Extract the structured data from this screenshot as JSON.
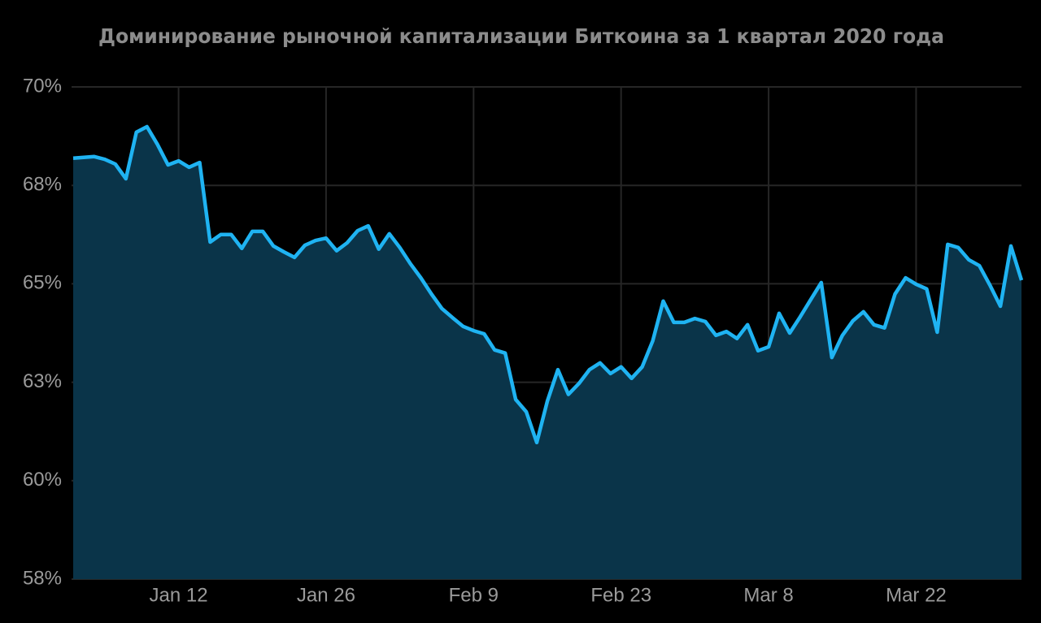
{
  "chart_data": {
    "type": "area",
    "title": "Доминирование рыночной капитализации Биткоина за 1 квартал 2020 года",
    "x": [
      "Jan 2",
      "Jan 3",
      "Jan 4",
      "Jan 5",
      "Jan 6",
      "Jan 7",
      "Jan 8",
      "Jan 9",
      "Jan 10",
      "Jan 11",
      "Jan 12",
      "Jan 13",
      "Jan 14",
      "Jan 15",
      "Jan 16",
      "Jan 17",
      "Jan 18",
      "Jan 19",
      "Jan 20",
      "Jan 21",
      "Jan 22",
      "Jan 23",
      "Jan 24",
      "Jan 25",
      "Jan 26",
      "Jan 27",
      "Jan 28",
      "Jan 29",
      "Jan 30",
      "Jan 31",
      "Feb 1",
      "Feb 2",
      "Feb 3",
      "Feb 4",
      "Feb 5",
      "Feb 6",
      "Feb 7",
      "Feb 8",
      "Feb 9",
      "Feb 10",
      "Feb 11",
      "Feb 12",
      "Feb 13",
      "Feb 14",
      "Feb 15",
      "Feb 16",
      "Feb 17",
      "Feb 18",
      "Feb 19",
      "Feb 20",
      "Feb 21",
      "Feb 22",
      "Feb 23",
      "Feb 24",
      "Feb 25",
      "Feb 26",
      "Feb 27",
      "Feb 28",
      "Feb 29",
      "Mar 1",
      "Mar 2",
      "Mar 3",
      "Mar 4",
      "Mar 5",
      "Mar 6",
      "Mar 7",
      "Mar 8",
      "Mar 9",
      "Mar 10",
      "Mar 11",
      "Mar 12",
      "Mar 13",
      "Mar 14",
      "Mar 15",
      "Mar 16",
      "Mar 17",
      "Mar 18",
      "Mar 19",
      "Mar 20",
      "Mar 21",
      "Mar 22",
      "Mar 23",
      "Mar 24",
      "Mar 25",
      "Mar 26",
      "Mar 27",
      "Mar 28",
      "Mar 29",
      "Mar 30",
      "Mar 31",
      "Apr 1"
    ],
    "values": [
      68.19,
      68.21,
      68.23,
      68.16,
      68.04,
      67.67,
      68.85,
      68.99,
      68.54,
      68.02,
      68.12,
      67.96,
      68.08,
      66.06,
      66.25,
      66.25,
      65.9,
      66.33,
      66.33,
      65.96,
      65.81,
      65.67,
      65.98,
      66.1,
      66.16,
      65.84,
      66.04,
      66.35,
      66.47,
      65.88,
      66.27,
      65.92,
      65.51,
      65.15,
      64.74,
      64.37,
      64.14,
      63.92,
      63.81,
      63.73,
      63.32,
      63.24,
      62.06,
      61.75,
      60.97,
      62.02,
      62.82,
      62.19,
      62.47,
      62.82,
      62.99,
      62.72,
      62.89,
      62.6,
      62.89,
      63.55,
      64.56,
      64.02,
      64.02,
      64.12,
      64.04,
      63.69,
      63.79,
      63.61,
      63.96,
      63.3,
      63.4,
      64.25,
      63.75,
      64.16,
      64.6,
      65.03,
      63.13,
      63.69,
      64.06,
      64.29,
      63.96,
      63.88,
      64.74,
      65.15,
      64.99,
      64.87,
      63.77,
      66.0,
      65.92,
      65.61,
      65.46,
      64.97,
      64.43,
      65.96,
      65.09
    ],
    "color": "#1fb3f2",
    "fill_color": "#0a3449",
    "xticks": [
      "Jan 12",
      "Jan 26",
      "Feb 9",
      "Feb 23",
      "Mar 8",
      "Mar 22"
    ],
    "ylim": [
      57.5,
      70
    ],
    "yticks": [
      {
        "value": 57.5,
        "label": "58%"
      },
      {
        "value": 60,
        "label": "60%"
      },
      {
        "value": 62.5,
        "label": "63%"
      },
      {
        "value": 65,
        "label": "65%"
      },
      {
        "value": 67.5,
        "label": "68%"
      },
      {
        "value": 70,
        "label": "70%"
      }
    ],
    "grid": true
  }
}
